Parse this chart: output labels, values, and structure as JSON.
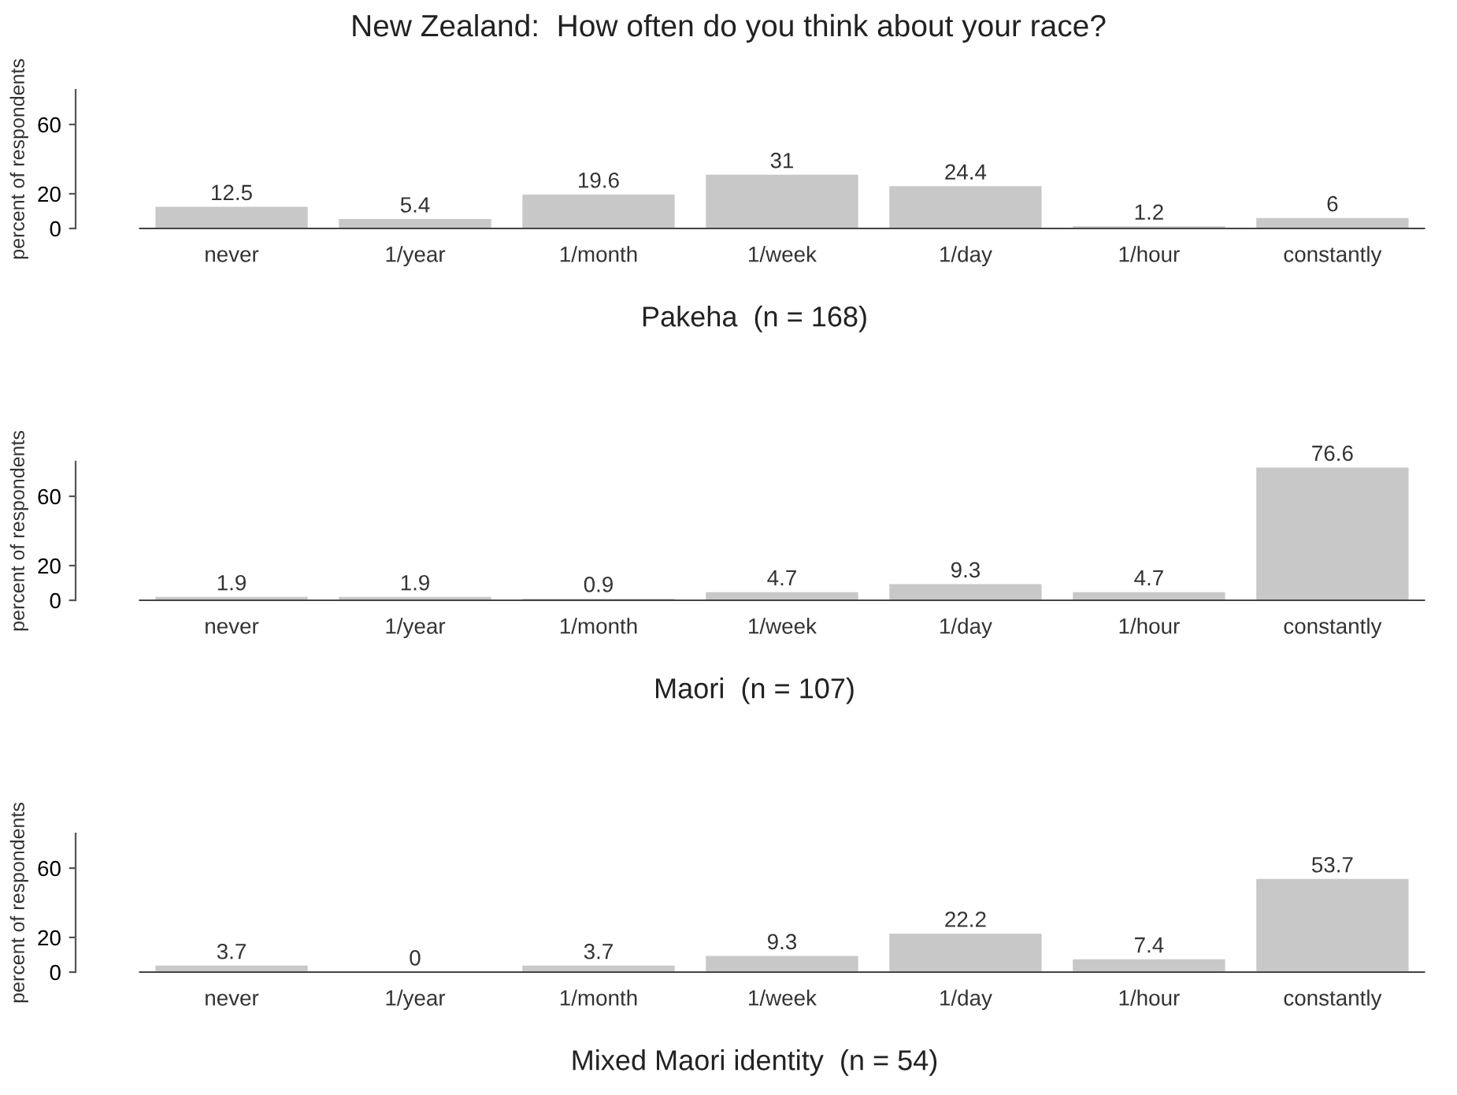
{
  "chart_data": [
    {
      "type": "bar",
      "title": "New Zealand:  How often do you think about your race?",
      "xlabel": "Pakeha  (n = 168)",
      "ylabel": "percent of respondents",
      "categories": [
        "never",
        "1/year",
        "1/month",
        "1/week",
        "1/day",
        "1/hour",
        "constantly"
      ],
      "values": [
        12.5,
        5.4,
        19.6,
        31,
        24.4,
        1.2,
        6
      ],
      "color": "#c8c8c8",
      "ylim": [
        0,
        80
      ],
      "yticks": [
        0,
        20,
        60
      ],
      "data_labels": true,
      "grid": false,
      "legend": false
    },
    {
      "type": "bar",
      "xlabel": "Maori  (n = 107)",
      "ylabel": "percent of respondents",
      "categories": [
        "never",
        "1/year",
        "1/month",
        "1/week",
        "1/day",
        "1/hour",
        "constantly"
      ],
      "values": [
        1.9,
        1.9,
        0.9,
        4.7,
        9.3,
        4.7,
        76.6
      ],
      "color": "#c8c8c8",
      "ylim": [
        0,
        80
      ],
      "yticks": [
        0,
        20,
        60
      ],
      "data_labels": true,
      "grid": false,
      "legend": false
    },
    {
      "type": "bar",
      "xlabel": "Mixed Maori identity  (n = 54)",
      "ylabel": "percent of respondents",
      "categories": [
        "never",
        "1/year",
        "1/month",
        "1/week",
        "1/day",
        "1/hour",
        "constantly"
      ],
      "values": [
        3.7,
        0,
        3.7,
        9.3,
        22.2,
        7.4,
        53.7
      ],
      "color": "#c8c8c8",
      "ylim": [
        0,
        80
      ],
      "yticks": [
        0,
        20,
        60
      ],
      "data_labels": true,
      "grid": false,
      "legend": false
    }
  ]
}
